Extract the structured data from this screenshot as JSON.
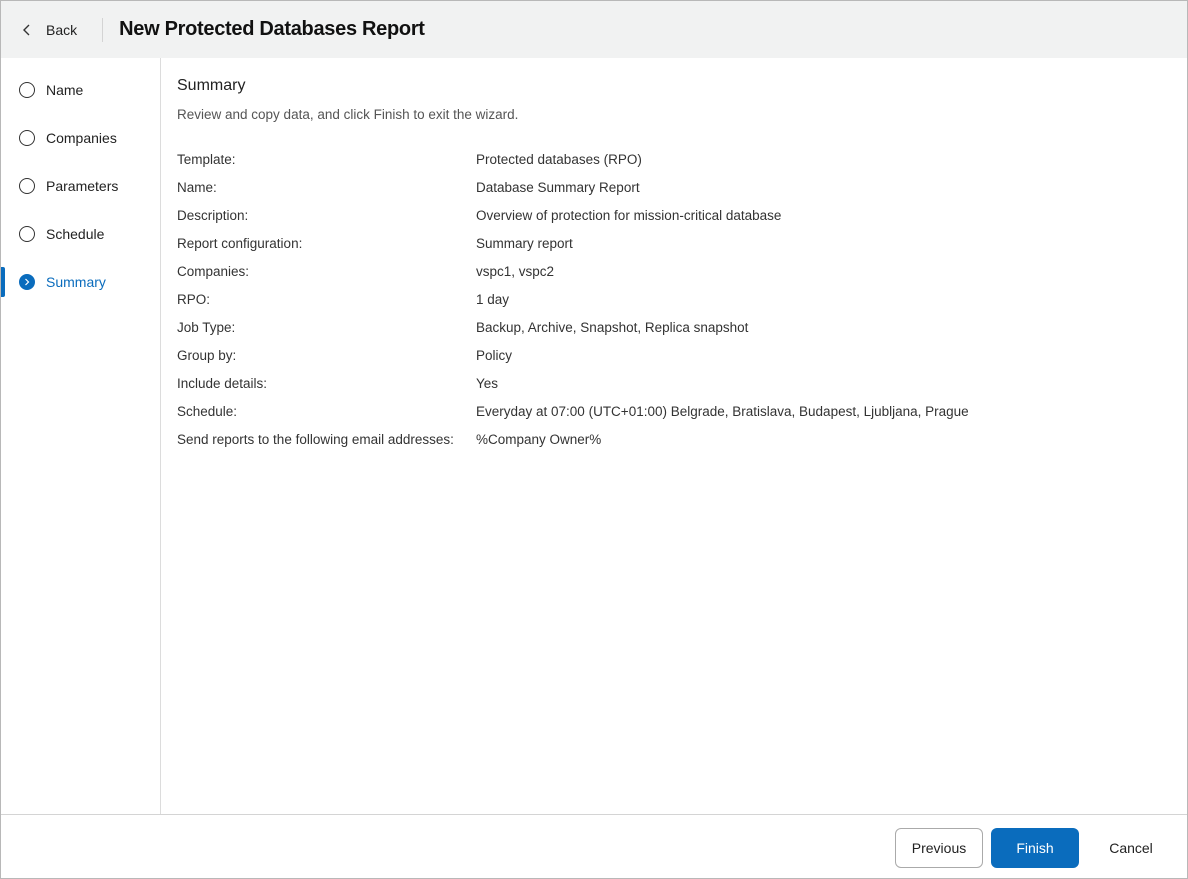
{
  "header": {
    "back_label": "Back",
    "title": "New Protected Databases Report"
  },
  "steps": [
    {
      "label": "Name"
    },
    {
      "label": "Companies"
    },
    {
      "label": "Parameters"
    },
    {
      "label": "Schedule"
    },
    {
      "label": "Summary",
      "active": true
    }
  ],
  "summary": {
    "heading": "Summary",
    "description": "Review and copy data, and click Finish to exit the wizard.",
    "rows": [
      {
        "k": "Template:",
        "v": "Protected databases (RPO)"
      },
      {
        "k": "Name:",
        "v": "Database Summary Report"
      },
      {
        "k": "Description:",
        "v": "Overview of protection for mission-critical database"
      },
      {
        "k": "Report configuration:",
        "v": "Summary report"
      },
      {
        "k": "Companies:",
        "v": "vspc1, vspc2"
      },
      {
        "k": "RPO:",
        "v": "1 day"
      },
      {
        "k": "Job Type:",
        "v": "Backup, Archive, Snapshot, Replica snapshot"
      },
      {
        "k": "Group by:",
        "v": "Policy"
      },
      {
        "k": "Include details:",
        "v": "Yes"
      },
      {
        "k": "Schedule:",
        "v": "Everyday at 07:00 (UTC+01:00) Belgrade, Bratislava, Budapest, Ljubljana, Prague"
      },
      {
        "k": "Send reports to the following email addresses:",
        "v": "%Company Owner%"
      }
    ]
  },
  "footer": {
    "previous": "Previous",
    "finish": "Finish",
    "cancel": "Cancel"
  },
  "colors": {
    "accent": "#0a6cbd"
  }
}
